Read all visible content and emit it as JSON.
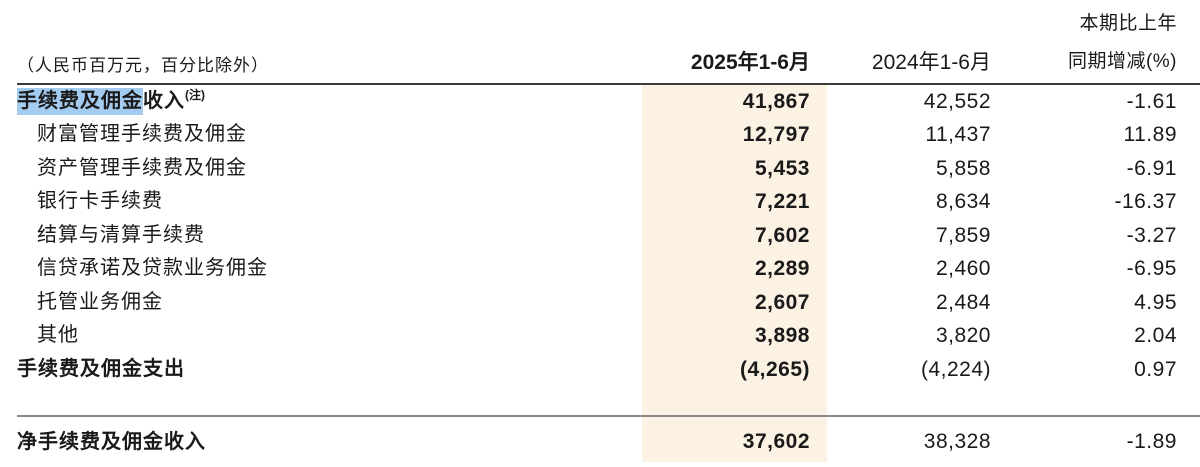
{
  "table": {
    "unit_note": "（人民币百万元，百分比除外）",
    "columns": {
      "col_2025": "2025年1-6月",
      "col_2024": "2024年1-6月",
      "col_change_line1": "本期比上年",
      "col_change_line2": "同期增减(%)"
    },
    "rows": [
      {
        "label_highlight": "手续费及佣金",
        "label_rest": "收入",
        "superscript": "(注)",
        "v2025": "41,867",
        "v2024": "42,552",
        "change": "-1.61"
      },
      {
        "label": "财富管理手续费及佣金",
        "v2025": "12,797",
        "v2024": "11,437",
        "change": "11.89"
      },
      {
        "label": "资产管理手续费及佣金",
        "v2025": "5,453",
        "v2024": "5,858",
        "change": "-6.91"
      },
      {
        "label": "银行卡手续费",
        "v2025": "7,221",
        "v2024": "8,634",
        "change": "-16.37"
      },
      {
        "label": "结算与清算手续费",
        "v2025": "7,602",
        "v2024": "7,859",
        "change": "-3.27"
      },
      {
        "label": "信贷承诺及贷款业务佣金",
        "v2025": "2,289",
        "v2024": "2,460",
        "change": "-6.95"
      },
      {
        "label": "托管业务佣金",
        "v2025": "2,607",
        "v2024": "2,484",
        "change": "4.95"
      },
      {
        "label": "其他",
        "v2025": "3,898",
        "v2024": "3,820",
        "change": "2.04"
      },
      {
        "label": "手续费及佣金支出",
        "v2025": "(4,265)",
        "v2024": "(4,224)",
        "change": "0.97"
      },
      {
        "label": "净手续费及佣金收入",
        "v2025": "37,602",
        "v2024": "38,328",
        "change": "-1.89"
      }
    ],
    "colors": {
      "column_band": "#fcf2e4",
      "selection_highlight": "#a4cbf0",
      "header_rule": "#3a3a3a",
      "subtotal_rule": "#8a8a8a",
      "text": "#1a1a1a"
    }
  }
}
